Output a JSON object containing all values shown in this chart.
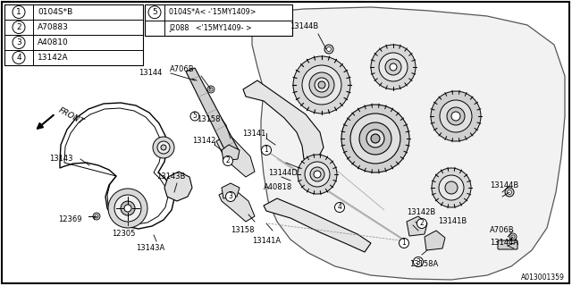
{
  "bg_color": "#ffffff",
  "line_color": "#000000",
  "text_color": "#000000",
  "light_gray": "#e8e8e8",
  "mid_gray": "#d0d0d0",
  "diagram_label": "A013001359",
  "legend_items": [
    {
      "num": "1",
      "code": "0104S*B"
    },
    {
      "num": "2",
      "code": "A70883"
    },
    {
      "num": "3",
      "code": "A40810"
    },
    {
      "num": "4",
      "code": "13142A"
    }
  ],
  "legend_right_num": "5",
  "legend_right_line1": "0104S*A< -'15MY1409>",
  "legend_right_line2": "J2088   <'15MY1409- >",
  "fig_width": 6.4,
  "fig_height": 3.2,
  "dpi": 100
}
